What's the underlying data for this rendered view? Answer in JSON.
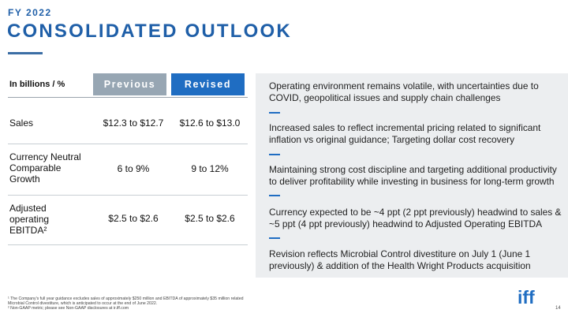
{
  "header": {
    "kicker": "FY 2022",
    "title": "CONSOLIDATED OUTLOOK"
  },
  "table": {
    "label_header": "In billions / %",
    "previous_header": "Previous",
    "revised_header": "Revised",
    "rows": [
      {
        "label": "Sales",
        "previous": "$12.3 to $12.7",
        "revised": "$12.6 to $13.0"
      },
      {
        "label": "Currency Neutral Comparable Growth",
        "previous": "6 to 9%",
        "revised": "9 to 12%"
      },
      {
        "label": "Adjusted operating EBITDA²",
        "previous": "$2.5 to $2.6",
        "revised": "$2.5 to $2.6"
      }
    ]
  },
  "panel": {
    "items": [
      "Operating environment remains volatile, with uncertainties due to COVID, geopolitical issues and supply chain challenges",
      "Increased sales to reflect incremental pricing related to significant inflation vs original guidance; Targeting dollar cost recovery",
      "Maintaining strong cost discipline and targeting additional productivity to deliver profitability while investing in business for long-term growth",
      "Currency expected to be ~4 ppt (2 ppt previously) headwind to sales & ~5 ppt (4 ppt previously) headwind to Adjusted Operating EBITDA",
      "Revision reflects Microbial Control divestiture on July 1 (June 1 previously) & addition of the Health Wright Products acquisition"
    ]
  },
  "footnotes": {
    "note1": "¹ The Company's full year guidance excludes sales of approximately $250 million and EBITDA of approximately $35 million related Microbial Control divestiture, which is anticipated to occur at the end of June 2022.",
    "note2": "² Non-GAAP metric; please see Non-GAAP disclosures at ir.iff.com"
  },
  "brand": {
    "logo_text": "iff",
    "accent_color": "#1f6dc2",
    "previous_color": "#97a6b3",
    "panel_color": "#eceef0"
  },
  "page_number": "14"
}
